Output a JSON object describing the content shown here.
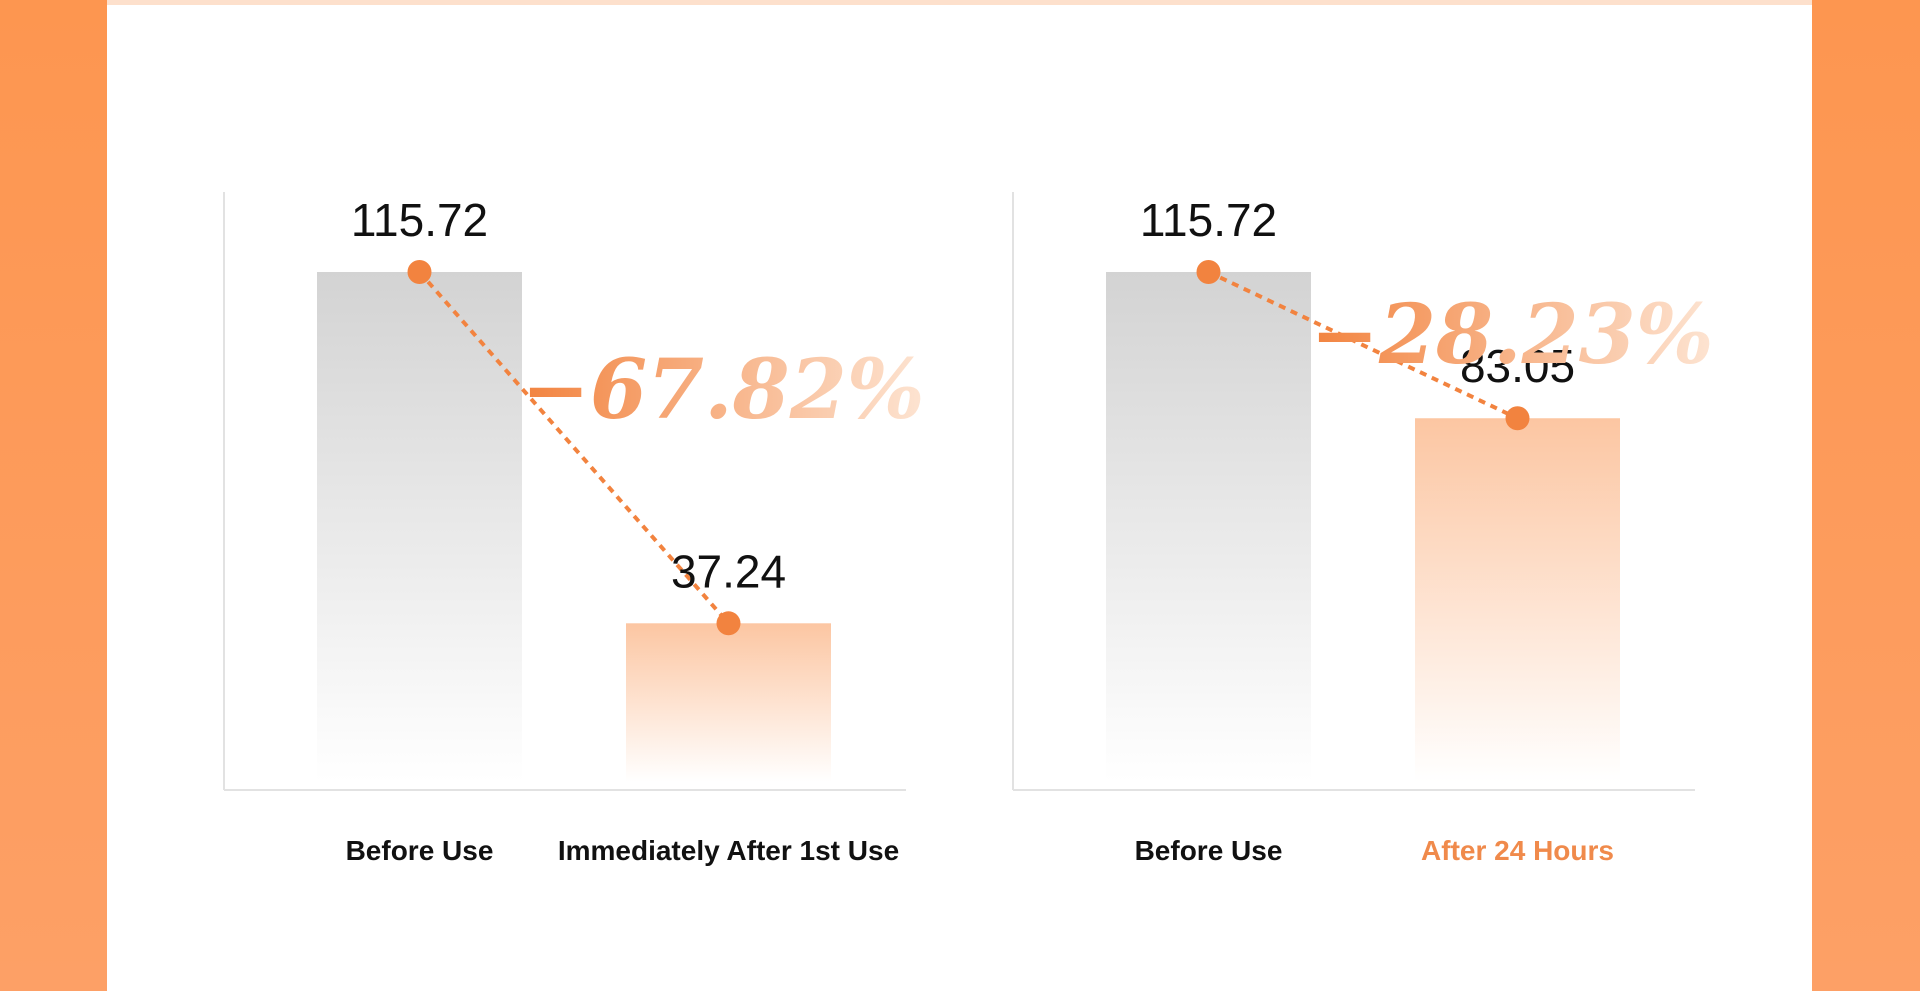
{
  "chart_data": [
    {
      "type": "bar",
      "categories": [
        "Before Use",
        "Immediately After 1st Use"
      ],
      "values": [
        115.72,
        37.24
      ],
      "colors": [
        "#d3d3d3",
        "#fcc6a2"
      ],
      "category_colors": [
        "#111111",
        "#111111"
      ],
      "annotation": "−67.82%",
      "line_color": "#f2833f"
    },
    {
      "type": "bar",
      "categories": [
        "Before Use",
        "After 24 Hours"
      ],
      "values": [
        115.72,
        83.05
      ],
      "colors": [
        "#d3d3d3",
        "#fcc6a2"
      ],
      "category_colors": [
        "#111111",
        "#f08a4b"
      ],
      "annotation": "−28.23%",
      "line_color": "#f2833f"
    }
  ]
}
